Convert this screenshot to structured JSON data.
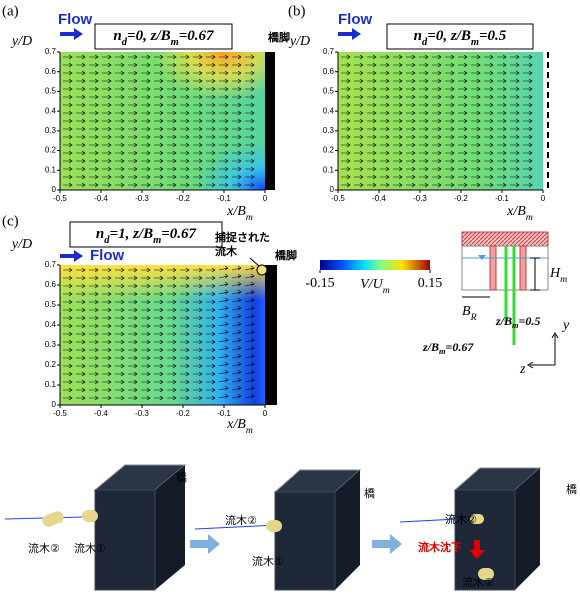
{
  "panels": [
    {
      "label": "(a)",
      "flow": "Flow",
      "title_parts": [
        "n",
        "d",
        "=0, z/B",
        "m",
        "=0.67"
      ],
      "pier": "橋脚",
      "y_label": "y/D",
      "x_label": [
        "x/B",
        "m"
      ],
      "xlim": [
        -0.5,
        0
      ],
      "ylim": [
        0,
        0.7
      ],
      "xticks": [
        -0.5,
        -0.4,
        -0.3,
        -0.2,
        -0.1,
        0
      ],
      "yticks": [
        0,
        0.1,
        0.2,
        0.3,
        0.4,
        0.5,
        0.6,
        0.7
      ]
    },
    {
      "label": "(b)",
      "flow": "Flow",
      "title_parts": [
        "n",
        "d",
        "=0, z/B",
        "m",
        "=0.5"
      ],
      "y_label": "y/D",
      "x_label": [
        "x/B",
        "m"
      ],
      "xlim": [
        -0.5,
        0
      ],
      "ylim": [
        0,
        0.7
      ],
      "xticks": [
        -0.5,
        -0.4,
        -0.3,
        -0.2,
        -0.1,
        0
      ],
      "yticks": [
        0,
        0.1,
        0.2,
        0.3,
        0.4,
        0.5,
        0.6,
        0.7
      ]
    },
    {
      "label": "(c)",
      "flow": "Flow",
      "title_parts": [
        "n",
        "d",
        "=1, z/B",
        "m",
        "=0.67"
      ],
      "pier": "橋脚",
      "debris": [
        "捕捉された",
        "流木"
      ],
      "y_label": "y/D",
      "x_label": [
        "x/B",
        "m"
      ],
      "xlim": [
        -0.5,
        0
      ],
      "ylim": [
        0,
        0.7
      ],
      "xticks": [
        -0.5,
        -0.4,
        -0.3,
        -0.2,
        -0.1,
        0
      ],
      "yticks": [
        0,
        0.1,
        0.2,
        0.3,
        0.4,
        0.5,
        0.6,
        0.7
      ]
    }
  ],
  "colorbar": {
    "lim": [
      -0.15,
      0.15
    ],
    "ticks": [
      -0.15,
      0.15
    ],
    "label": [
      "V/U",
      "m"
    ]
  },
  "schematic": {
    "h": [
      "H",
      "m"
    ],
    "b": [
      "B",
      "R"
    ],
    "z1": [
      "z/B",
      "m",
      "=0.5"
    ],
    "z2": [
      "z/B",
      "m",
      "=0.67"
    ],
    "y": "y",
    "z": "z"
  },
  "steps": [
    {
      "pier": "橋",
      "logs": [
        "流木②",
        "流木①"
      ]
    },
    {
      "pier": "橋",
      "logs": [
        "流木②",
        "流木①"
      ]
    },
    {
      "pier": "橋",
      "logs": [
        "流木②",
        "流木①"
      ],
      "sink": "流木沈下"
    }
  ]
}
